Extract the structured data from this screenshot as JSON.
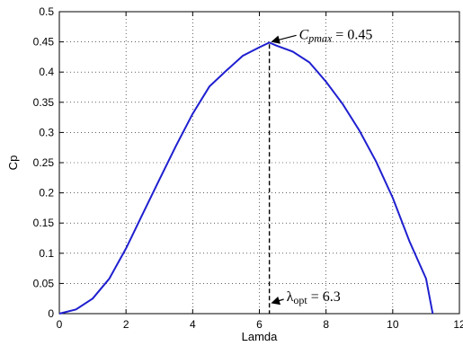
{
  "chart_data": {
    "type": "line",
    "title": "",
    "xlabel": "Lamda",
    "ylabel": "Cp",
    "xlim": [
      0,
      12
    ],
    "ylim": [
      0,
      0.5
    ],
    "xticks": [
      "0",
      "2",
      "4",
      "6",
      "8",
      "10",
      "12"
    ],
    "yticks": [
      "0",
      "0.05",
      "0.1",
      "0.15",
      "0.2",
      "0.25",
      "0.3",
      "0.35",
      "0.4",
      "0.45",
      "0.5"
    ],
    "grid": true,
    "series": [
      {
        "color": "#1f1fd0",
        "points": [
          [
            0,
            0
          ],
          [
            0.5,
            0.007
          ],
          [
            1.0,
            0.025
          ],
          [
            1.5,
            0.058
          ],
          [
            2.0,
            0.108
          ],
          [
            2.5,
            0.165
          ],
          [
            3.0,
            0.222
          ],
          [
            3.5,
            0.278
          ],
          [
            4.0,
            0.331
          ],
          [
            4.5,
            0.376
          ],
          [
            5.0,
            0.402
          ],
          [
            5.5,
            0.427
          ],
          [
            6.0,
            0.441
          ],
          [
            6.3,
            0.449
          ],
          [
            6.5,
            0.444
          ],
          [
            7.0,
            0.434
          ],
          [
            7.5,
            0.416
          ],
          [
            8.0,
            0.384
          ],
          [
            8.5,
            0.347
          ],
          [
            9.0,
            0.303
          ],
          [
            9.5,
            0.252
          ],
          [
            10.0,
            0.192
          ],
          [
            10.5,
            0.12
          ],
          [
            11.0,
            0.058
          ],
          [
            11.2,
            0.0
          ]
        ]
      }
    ],
    "annotations": {
      "peak": {
        "x": 6.3,
        "y": 0.449,
        "prefix": "C",
        "sub": "pmax",
        "suffix": " = 0.45"
      },
      "opt": {
        "x": 6.3,
        "y": 0.0,
        "prefix": "λ",
        "sub": "opt",
        "suffix": " = 6.3"
      }
    }
  }
}
